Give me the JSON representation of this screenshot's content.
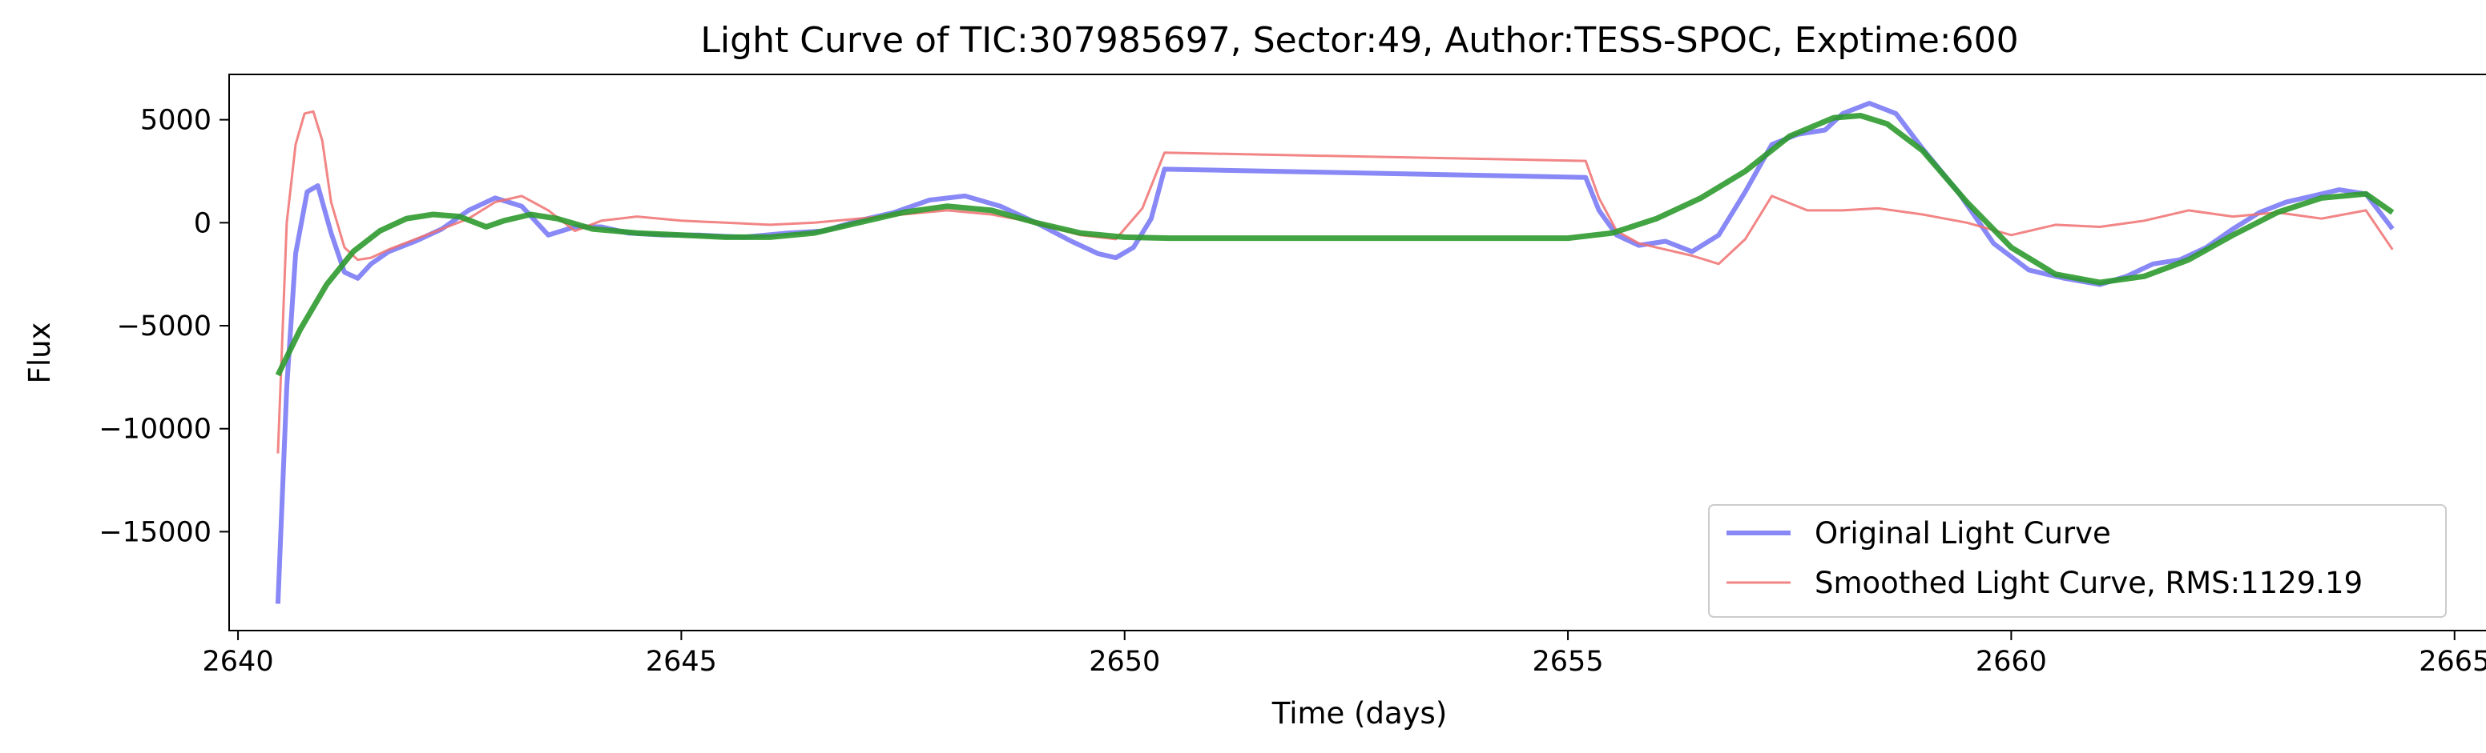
{
  "chart_data": {
    "type": "line",
    "title": "Light Curve of TIC:307985697, Sector:49, Author:TESS-SPOC, Exptime:600",
    "xlabel": "Time (days)",
    "ylabel": "Flux",
    "xlim": [
      2639.9,
      2665.4
    ],
    "ylim": [
      -19800,
      7200
    ],
    "xticks": [
      2640,
      2645,
      2650,
      2655,
      2660,
      2665
    ],
    "xtick_labels": [
      "2640",
      "2645",
      "2650",
      "2655",
      "2660",
      "2665"
    ],
    "yticks": [
      5000,
      0,
      -5000,
      -10000,
      -15000
    ],
    "ytick_labels": [
      "5000",
      "0",
      "−5000",
      "−10000",
      "−15000"
    ],
    "grid": false,
    "legend_position": "lower-right",
    "series": [
      {
        "name": "Original Light Curve",
        "color": "#7b7bf5",
        "x": [
          2640.45,
          2640.55,
          2640.65,
          2640.78,
          2640.9,
          2641.05,
          2641.2,
          2641.35,
          2641.5,
          2641.7,
          2642.0,
          2642.3,
          2642.6,
          2642.9,
          2643.2,
          2643.5,
          2643.8,
          2644.1,
          2644.4,
          2644.8,
          2645.2,
          2645.7,
          2646.2,
          2646.6,
          2647.0,
          2647.4,
          2647.8,
          2648.2,
          2648.6,
          2649.0,
          2649.4,
          2649.7,
          2649.9,
          2650.1,
          2650.3,
          2650.45,
          2655.2,
          2655.35,
          2655.55,
          2655.8,
          2656.1,
          2656.4,
          2656.7,
          2657.0,
          2657.3,
          2657.6,
          2657.9,
          2658.1,
          2658.4,
          2658.7,
          2659.0,
          2659.4,
          2659.8,
          2660.2,
          2660.6,
          2661.0,
          2661.3,
          2661.6,
          2661.9,
          2662.2,
          2662.5,
          2662.8,
          2663.1,
          2663.4,
          2663.7,
          2664.0,
          2664.3
        ],
        "y": [
          -18500,
          -8000,
          -1500,
          1500,
          1800,
          -500,
          -2400,
          -2700,
          -2000,
          -1400,
          -900,
          -300,
          600,
          1200,
          800,
          -600,
          -200,
          -200,
          -500,
          -600,
          -600,
          -700,
          -500,
          -400,
          100,
          500,
          1100,
          1300,
          800,
          0,
          -900,
          -1500,
          -1700,
          -1200,
          200,
          2600,
          2200,
          600,
          -600,
          -1100,
          -900,
          -1400,
          -600,
          1500,
          3800,
          4300,
          4500,
          5300,
          5800,
          5300,
          3600,
          1500,
          -1000,
          -2300,
          -2700,
          -3000,
          -2600,
          -2000,
          -1800,
          -1200,
          -300,
          500,
          1000,
          1300,
          1600,
          1400,
          -300
        ]
      },
      {
        "name": "Smoothed Light Curve, RMS:1129.19",
        "color": "#f07070",
        "x": [
          2640.45,
          2640.55,
          2640.65,
          2640.75,
          2640.85,
          2640.95,
          2641.05,
          2641.2,
          2641.35,
          2641.5,
          2641.7,
          2642.0,
          2642.3,
          2642.6,
          2642.9,
          2643.2,
          2643.5,
          2643.8,
          2644.1,
          2644.5,
          2645.0,
          2645.5,
          2646.0,
          2646.5,
          2647.0,
          2647.5,
          2648.0,
          2648.5,
          2649.0,
          2649.5,
          2649.9,
          2650.2,
          2650.45,
          2655.2,
          2655.35,
          2655.55,
          2655.8,
          2656.1,
          2656.4,
          2656.7,
          2657.0,
          2657.3,
          2657.7,
          2658.1,
          2658.5,
          2659.0,
          2659.5,
          2660.0,
          2660.5,
          2661.0,
          2661.5,
          2662.0,
          2662.5,
          2663.0,
          2663.5,
          2664.0,
          2664.3
        ],
        "y": [
          -11200,
          0,
          3800,
          5300,
          5400,
          4000,
          1000,
          -1200,
          -1800,
          -1700,
          -1300,
          -800,
          -300,
          200,
          1000,
          1300,
          600,
          -400,
          100,
          300,
          100,
          0,
          -100,
          0,
          200,
          400,
          600,
          400,
          0,
          -600,
          -800,
          700,
          3400,
          3000,
          1200,
          -400,
          -1000,
          -1300,
          -1600,
          -2000,
          -800,
          1300,
          600,
          600,
          700,
          400,
          0,
          -600,
          -100,
          -200,
          100,
          600,
          300,
          500,
          200,
          600,
          -1300
        ]
      },
      {
        "name": "",
        "color": "#2e9a2e",
        "x": [
          2640.45,
          2640.7,
          2641.0,
          2641.3,
          2641.6,
          2641.9,
          2642.2,
          2642.5,
          2642.8,
          2643.0,
          2643.3,
          2643.6,
          2644.0,
          2644.5,
          2645.0,
          2645.5,
          2646.0,
          2646.5,
          2647.0,
          2647.5,
          2648.0,
          2648.5,
          2649.0,
          2649.5,
          2650.0,
          2650.5,
          2651.0,
          2652.0,
          2653.0,
          2654.0,
          2655.0,
          2655.5,
          2656.0,
          2656.5,
          2657.0,
          2657.5,
          2658.0,
          2658.3,
          2658.6,
          2659.0,
          2659.5,
          2660.0,
          2660.5,
          2661.0,
          2661.5,
          2662.0,
          2662.5,
          2663.0,
          2663.5,
          2664.0,
          2664.3
        ],
        "y": [
          -7400,
          -5200,
          -3000,
          -1400,
          -400,
          200,
          400,
          300,
          -200,
          100,
          400,
          200,
          -300,
          -500,
          -600,
          -700,
          -700,
          -500,
          0,
          500,
          800,
          600,
          0,
          -500,
          -700,
          -750,
          -750,
          -750,
          -750,
          -750,
          -750,
          -500,
          200,
          1200,
          2500,
          4200,
          5100,
          5200,
          4800,
          3500,
          1000,
          -1200,
          -2500,
          -2900,
          -2600,
          -1800,
          -600,
          500,
          1200,
          1400,
          500
        ]
      }
    ]
  }
}
